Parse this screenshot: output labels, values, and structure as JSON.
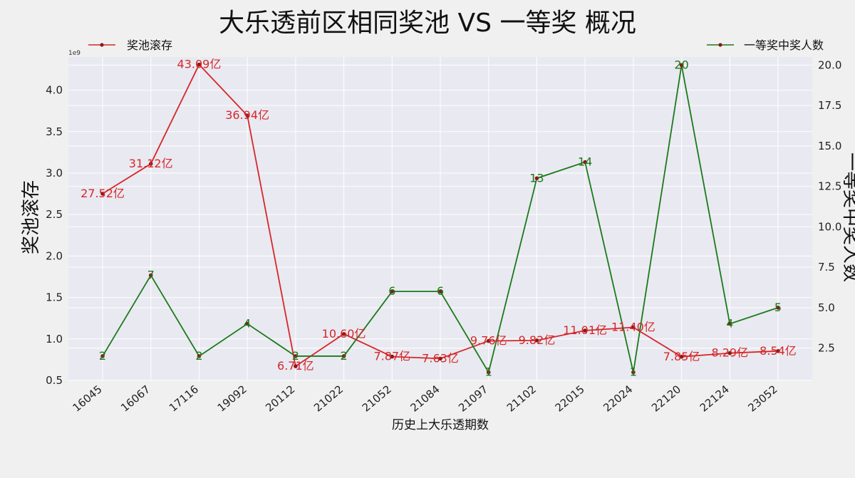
{
  "chart_data": {
    "type": "line",
    "title": "大乐透前区相同奖池 VS 一等奖 概况",
    "xlabel": "历史上大乐透期数",
    "ylabel_left": "奖池滚存",
    "ylabel_right": "一等奖中奖人数",
    "left_axis_multiplier": "1e9",
    "categories": [
      "16045",
      "16067",
      "17116",
      "19092",
      "20112",
      "21022",
      "21052",
      "21084",
      "21097",
      "21102",
      "22015",
      "22024",
      "22120",
      "22124",
      "23052"
    ],
    "left_ticks": [
      "0.5",
      "1.0",
      "1.5",
      "2.0",
      "2.5",
      "3.0",
      "3.5",
      "4.0"
    ],
    "right_ticks": [
      "2.5",
      "5.0",
      "7.5",
      "10.0",
      "12.5",
      "15.0",
      "17.5",
      "20.0"
    ],
    "ylim_left": [
      0.5,
      4.4
    ],
    "ylim_right": [
      0.5,
      20.5
    ],
    "grid": true,
    "legend_left": "top-left",
    "legend_right": "top-right",
    "series": [
      {
        "name": "奖池滚存",
        "axis": "left",
        "color": "#d62728",
        "values": [
          2.752,
          3.112,
          4.309,
          3.694,
          0.671,
          1.06,
          0.787,
          0.763,
          0.976,
          0.982,
          1.101,
          1.14,
          0.785,
          0.829,
          0.854
        ],
        "labels": [
          "27.52亿",
          "31.12亿",
          "43.09亿",
          "36.94亿",
          "6.71亿",
          "10.60亿",
          "7.87亿",
          "7.63亿",
          "9.76亿",
          "9.82亿",
          "11.01亿",
          "11.40亿",
          "7.85亿",
          "8.29亿",
          "8.54亿"
        ]
      },
      {
        "name": "一等奖中奖人数",
        "axis": "right",
        "color": "#1a7a1a",
        "values": [
          2,
          7,
          2,
          4,
          2,
          2,
          6,
          6,
          1,
          13,
          14,
          1,
          20,
          4,
          5
        ],
        "labels": [
          "2",
          "7",
          "2",
          "4",
          "2",
          "2",
          "6",
          "6",
          "1",
          "13",
          "14",
          "1",
          "20",
          "4",
          "5"
        ]
      }
    ]
  }
}
